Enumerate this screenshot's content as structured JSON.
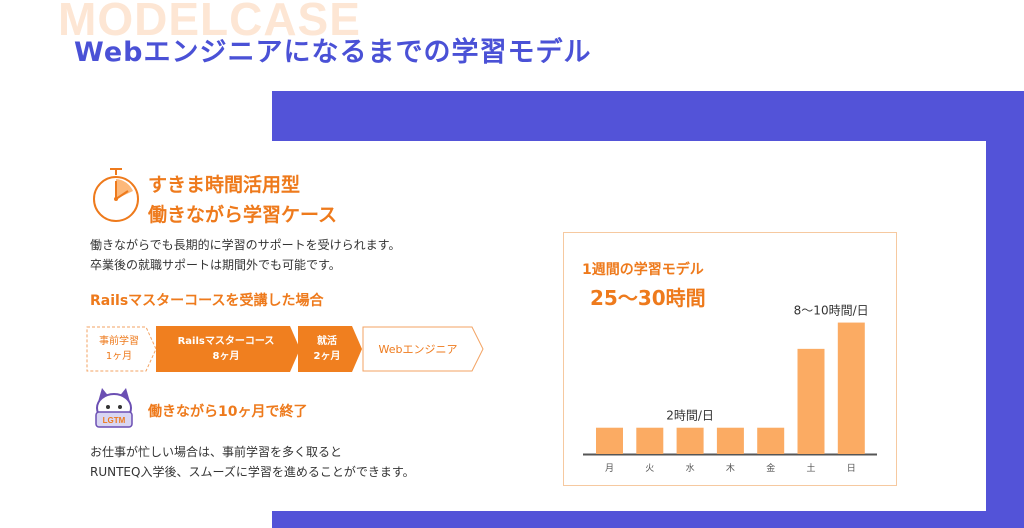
{
  "header": {
    "background_word": "MODELCASE",
    "title": "Webエンジニアになるまでの学習モデル"
  },
  "case": {
    "title_line1": "すきま時間活用型",
    "title_line2": "働きながら学習ケース",
    "desc_line1": "働きながらでも長期的に学習のサポートを受けられます。",
    "desc_line2": "卒業後の就職サポートは期間外でも可能です。"
  },
  "course": {
    "title": "Railsマスターコースを受講した場合",
    "steps": [
      {
        "line1": "事前学習",
        "line2": "1ヶ月"
      },
      {
        "line1": "Railsマスターコース",
        "line2": "8ヶ月"
      },
      {
        "line1": "就活",
        "line2": "2ヶ月"
      },
      {
        "line1": "Webエンジニア",
        "line2": ""
      }
    ]
  },
  "result": {
    "mascot_badge": "LGTM",
    "title": "働きながら10ヶ月で終了",
    "desc_line1": "お仕事が忙しい場合は、事前学習を多く取ると",
    "desc_line2": "RUNTEQ入学後、スムーズに学習を進めることができます。"
  },
  "colors": {
    "accent_orange": "#ee7a1c",
    "bar_orange": "#fbab63",
    "brand_blue": "#5353d8"
  },
  "chart_data": {
    "type": "bar",
    "title": "1週間の学習モデル",
    "subtitle": "25〜30時間",
    "categories": [
      "月",
      "火",
      "水",
      "木",
      "金",
      "土",
      "日"
    ],
    "values": [
      2,
      2,
      2,
      2,
      2,
      8,
      10
    ],
    "annotations": [
      {
        "text": "2時間/日",
        "applies_to": [
          "月",
          "火",
          "水",
          "木",
          "金"
        ]
      },
      {
        "text": "8〜10時間/日",
        "applies_to": [
          "土",
          "日"
        ]
      }
    ],
    "ylim": [
      0,
      10.5
    ],
    "grid": false,
    "xlabel": "",
    "ylabel": ""
  }
}
